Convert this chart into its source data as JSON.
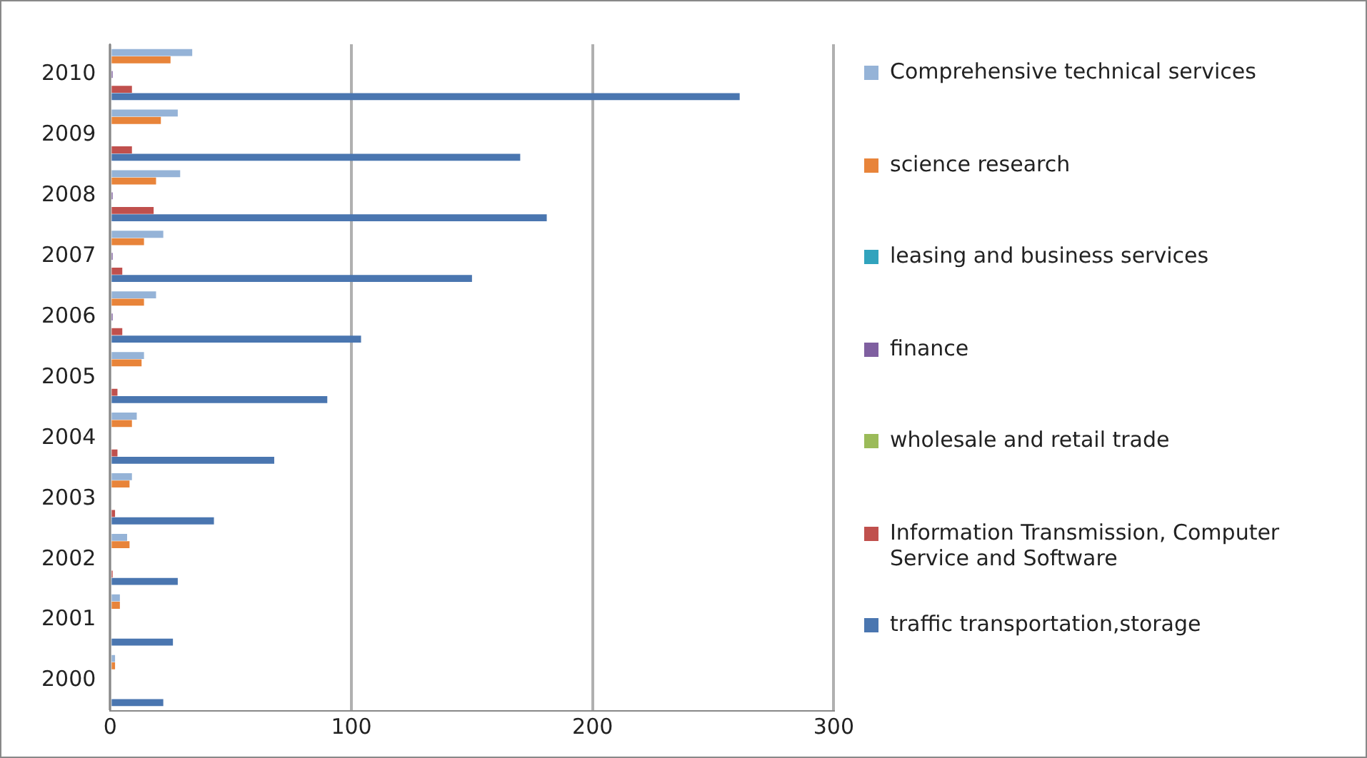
{
  "chart_data": {
    "type": "bar",
    "orientation": "horizontal",
    "categories": [
      "2010",
      "2009",
      "2008",
      "2007",
      "2006",
      "2005",
      "2004",
      "2003",
      "2002",
      "2001",
      "2000"
    ],
    "series": [
      {
        "name": "Comprehensive technical services",
        "color": "#95b3d7",
        "values": [
          34,
          28,
          29,
          22,
          19,
          14,
          11,
          9,
          7,
          4,
          2
        ]
      },
      {
        "name": "science research",
        "color": "#e8843a",
        "values": [
          25,
          21,
          19,
          14,
          14,
          13,
          9,
          8,
          8,
          4,
          2
        ]
      },
      {
        "name": "leasing and business services",
        "color": "#31a3bd",
        "values": [
          0,
          0,
          0,
          0,
          0,
          0,
          0,
          0,
          0,
          0,
          0
        ]
      },
      {
        "name": "finance",
        "color": "#7f5fa0",
        "values": [
          1,
          0,
          1,
          1,
          1,
          0,
          0,
          0,
          0,
          0,
          0
        ]
      },
      {
        "name": "wholesale and retail trade",
        "color": "#9bbb59",
        "values": [
          0,
          0,
          0,
          0,
          0,
          0,
          0,
          0,
          0,
          0,
          0
        ]
      },
      {
        "name": "Information Transmission, Computer Service and Software",
        "color": "#c0504d",
        "values": [
          9,
          9,
          18,
          5,
          5,
          3,
          3,
          2,
          1,
          0,
          0
        ]
      },
      {
        "name": "traffic transportation,storage",
        "color": "#4a76b0",
        "values": [
          261,
          170,
          181,
          150,
          104,
          90,
          68,
          43,
          28,
          26,
          22
        ]
      }
    ],
    "xlim": [
      0,
      300
    ],
    "xticks": [
      0,
      100,
      200,
      300
    ],
    "grid": "x",
    "legend": "right"
  }
}
